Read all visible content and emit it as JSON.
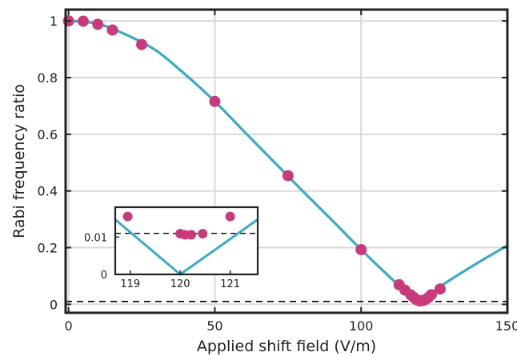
{
  "chart_data": {
    "type": "scatter",
    "xlabel": "Applied shift field (V/m)",
    "ylabel": "Rabi frequency ratio",
    "xlim": [
      -1,
      150
    ],
    "ylim": [
      -0.03,
      1.04
    ],
    "x_ticks": [
      0,
      50,
      100,
      150
    ],
    "y_ticks": [
      0,
      0.2,
      0.4,
      0.6,
      0.8,
      1
    ],
    "x_tick_labels": [
      "0",
      "50",
      "100",
      "150"
    ],
    "y_tick_labels": [
      "0",
      "0.2",
      "0.4",
      "0.6",
      "0.8",
      "1"
    ],
    "grid": true,
    "colors": {
      "points": "#c93a7a",
      "curve": "#3aaac4",
      "reference_line": "#000000",
      "grid": "#d9d9d9"
    },
    "reference_line_y": 0.01,
    "series": [
      {
        "points": [
          {
            "x": 0,
            "y": 1.0
          },
          {
            "x": 5,
            "y": 0.999
          },
          {
            "x": 10,
            "y": 0.988
          },
          {
            "x": 15,
            "y": 0.968
          },
          {
            "x": 25,
            "y": 0.917
          },
          {
            "x": 50,
            "y": 0.716
          },
          {
            "x": 75,
            "y": 0.454
          },
          {
            "x": 100,
            "y": 0.193
          },
          {
            "x": 113,
            "y": 0.069
          },
          {
            "x": 115,
            "y": 0.05
          },
          {
            "x": 117,
            "y": 0.033
          },
          {
            "x": 118,
            "y": 0.024
          },
          {
            "x": 119,
            "y": 0.016
          },
          {
            "x": 120,
            "y": 0.012
          },
          {
            "x": 121,
            "y": 0.013
          },
          {
            "x": 122,
            "y": 0.017
          },
          {
            "x": 123,
            "y": 0.024
          },
          {
            "x": 124,
            "y": 0.034
          },
          {
            "x": 127,
            "y": 0.054
          }
        ]
      }
    ],
    "fit_curve": {
      "samples": [
        {
          "x": 0,
          "y": 1.0
        },
        {
          "x": 10,
          "y": 0.99
        },
        {
          "x": 20,
          "y": 0.95
        },
        {
          "x": 30,
          "y": 0.895
        },
        {
          "x": 40,
          "y": 0.81
        },
        {
          "x": 50,
          "y": 0.716
        },
        {
          "x": 60,
          "y": 0.61
        },
        {
          "x": 70,
          "y": 0.505
        },
        {
          "x": 80,
          "y": 0.4
        },
        {
          "x": 90,
          "y": 0.297
        },
        {
          "x": 100,
          "y": 0.193
        },
        {
          "x": 110,
          "y": 0.094
        },
        {
          "x": 115,
          "y": 0.048
        },
        {
          "x": 120,
          "y": 0.0
        },
        {
          "x": 125,
          "y": 0.047
        },
        {
          "x": 130,
          "y": 0.083
        },
        {
          "x": 140,
          "y": 0.147
        },
        {
          "x": 150,
          "y": 0.208
        }
      ]
    },
    "inset": {
      "xlim": [
        118.7,
        121.55
      ],
      "ylim": [
        0,
        0.018
      ],
      "x_ticks": [
        119,
        120,
        121
      ],
      "x_tick_labels": [
        "119",
        "120",
        "121"
      ],
      "y_ticks": [
        0,
        0.01
      ],
      "y_tick_labels": [
        "0",
        "0.01"
      ],
      "reference_line_y": 0.011,
      "points": [
        {
          "x": 118.95,
          "y": 0.0155
        },
        {
          "x": 120.0,
          "y": 0.0109
        },
        {
          "x": 120.1,
          "y": 0.0106
        },
        {
          "x": 120.22,
          "y": 0.0106
        },
        {
          "x": 120.45,
          "y": 0.0109
        },
        {
          "x": 121.0,
          "y": 0.0155
        }
      ],
      "curve": [
        {
          "x": 118.7,
          "y": 0.0147
        },
        {
          "x": 120.0,
          "y": 0.0
        },
        {
          "x": 121.55,
          "y": 0.0147
        }
      ]
    }
  }
}
